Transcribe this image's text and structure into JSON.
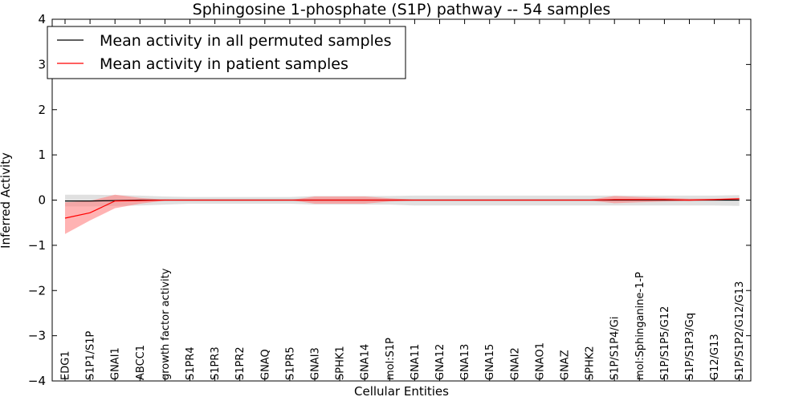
{
  "chart_data": {
    "type": "line",
    "title": "Sphingosine 1-phosphate (S1P) pathway -- 54 samples",
    "xlabel": "Cellular Entities",
    "ylabel": "Inferred Activity",
    "ylim": [
      -4,
      4
    ],
    "yticks": [
      -4,
      -3,
      -2,
      -1,
      0,
      1,
      2,
      3,
      4
    ],
    "ytick_labels": [
      "−4",
      "−3",
      "−2",
      "−1",
      "0",
      "1",
      "2",
      "3",
      "4"
    ],
    "grid": false,
    "legend_position": "top-left",
    "categories": [
      "EDG1",
      "S1P1/S1P",
      "GNAI1",
      "ABCC1",
      "growth factor activity",
      "S1PR4",
      "S1PR3",
      "S1PR2",
      "GNAQ",
      "S1PR5",
      "GNAI3",
      "SPHK1",
      "GNA14",
      "mol:S1P",
      "GNA11",
      "GNA12",
      "GNA13",
      "GNA15",
      "GNAI2",
      "GNAO1",
      "GNAZ",
      "SPHK2",
      "S1P/S1P4/Gi",
      "mol:Sphinganine-1-P",
      "S1P/S1P5/G12",
      "S1P/S1P3/Gq",
      "G12/G13",
      "S1P/S1P2/G12/G13"
    ],
    "series": [
      {
        "name": "Mean activity in all permuted samples",
        "color": "#000000",
        "fill_color": "#bbbbbb",
        "values": [
          -0.02,
          -0.02,
          -0.01,
          0,
          0,
          0,
          0,
          0,
          0,
          0,
          0,
          0,
          0,
          0,
          0,
          0,
          0,
          0,
          0,
          0,
          0,
          0,
          0,
          0,
          0,
          0,
          0,
          0
        ],
        "lower": [
          -0.14,
          -0.14,
          -0.13,
          -0.12,
          -0.1,
          -0.08,
          -0.08,
          -0.08,
          -0.08,
          -0.08,
          -0.1,
          -0.1,
          -0.1,
          -0.1,
          -0.12,
          -0.12,
          -0.12,
          -0.12,
          -0.12,
          -0.12,
          -0.12,
          -0.12,
          -0.12,
          -0.12,
          -0.12,
          -0.12,
          -0.12,
          -0.13
        ],
        "upper": [
          0.12,
          0.12,
          0.11,
          0.1,
          0.08,
          0.07,
          0.07,
          0.07,
          0.07,
          0.07,
          0.09,
          0.09,
          0.09,
          0.09,
          0.1,
          0.1,
          0.1,
          0.1,
          0.1,
          0.1,
          0.1,
          0.1,
          0.1,
          0.1,
          0.1,
          0.1,
          0.1,
          0.11
        ]
      },
      {
        "name": "Mean activity in patient samples",
        "color": "#ff0000",
        "fill_color": "#ff8080",
        "values": [
          -0.4,
          -0.28,
          -0.02,
          -0.01,
          0,
          0,
          0,
          0,
          0,
          0,
          0,
          0,
          0,
          0,
          0,
          0,
          0,
          0,
          0,
          0,
          0,
          0,
          0.01,
          0.01,
          0.01,
          0,
          0.01,
          0.03
        ],
        "lower": [
          -0.75,
          -0.45,
          -0.18,
          -0.08,
          -0.01,
          0,
          0,
          0,
          0,
          0,
          -0.08,
          -0.08,
          -0.08,
          -0.03,
          -0.01,
          -0.01,
          -0.01,
          -0.01,
          -0.01,
          -0.01,
          -0.01,
          -0.01,
          -0.07,
          -0.05,
          -0.03,
          -0.02,
          0,
          0.01
        ],
        "upper": [
          -0.05,
          -0.02,
          0.12,
          0.05,
          0.01,
          0,
          0,
          0,
          0,
          0,
          0.08,
          0.08,
          0.08,
          0.04,
          0.01,
          0.01,
          0.01,
          0.01,
          0.01,
          0.01,
          0.01,
          0.01,
          0.09,
          0.07,
          0.05,
          0.03,
          0.03,
          0.05
        ]
      }
    ]
  }
}
